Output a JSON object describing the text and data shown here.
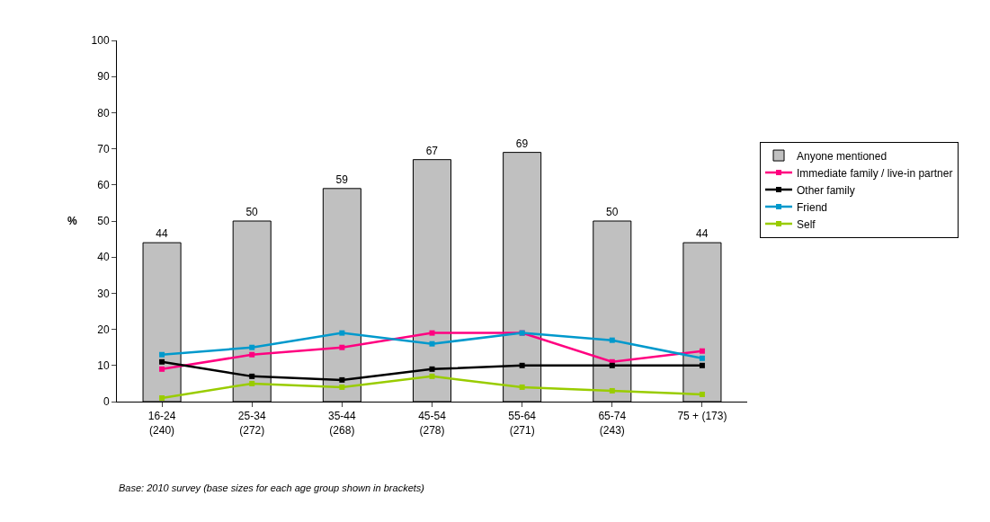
{
  "chart_data": {
    "type": "bar",
    "ylabel": "%",
    "categories": [
      "16-24\n(240)",
      "25-34\n(272)",
      "35-44\n(268)",
      "45-54\n(278)",
      "55-64\n(271)",
      "65-74\n(243)",
      "75 + (173)"
    ],
    "series": [
      {
        "name": "Anyone mentioned",
        "color": "#c0c0c0",
        "values": [
          44,
          50,
          59,
          67,
          69,
          50,
          44
        ],
        "data_labels": true
      },
      {
        "name": "Immediate family / live-in partner",
        "type": "line",
        "color": "#ff0080",
        "values": [
          9,
          13,
          15,
          19,
          19,
          11,
          14
        ]
      },
      {
        "name": "Other family",
        "type": "line",
        "color": "#000000",
        "values": [
          11,
          7,
          6,
          9,
          10,
          10,
          10
        ]
      },
      {
        "name": "Friend",
        "type": "line",
        "color": "#0099cc",
        "values": [
          13,
          15,
          19,
          16,
          19,
          17,
          12
        ]
      },
      {
        "name": "Self",
        "type": "line",
        "color": "#99cc00",
        "values": [
          1,
          5,
          4,
          7,
          4,
          3,
          2
        ]
      }
    ],
    "ylim": [
      0,
      100
    ],
    "yticks": [
      0,
      10,
      20,
      30,
      40,
      50,
      60,
      70,
      80,
      90,
      100
    ],
    "legend": "right",
    "marker": "square",
    "line_style": "solid",
    "annotations": [
      "Base: 2010 survey (base sizes for each age group shown in brackets)"
    ]
  }
}
